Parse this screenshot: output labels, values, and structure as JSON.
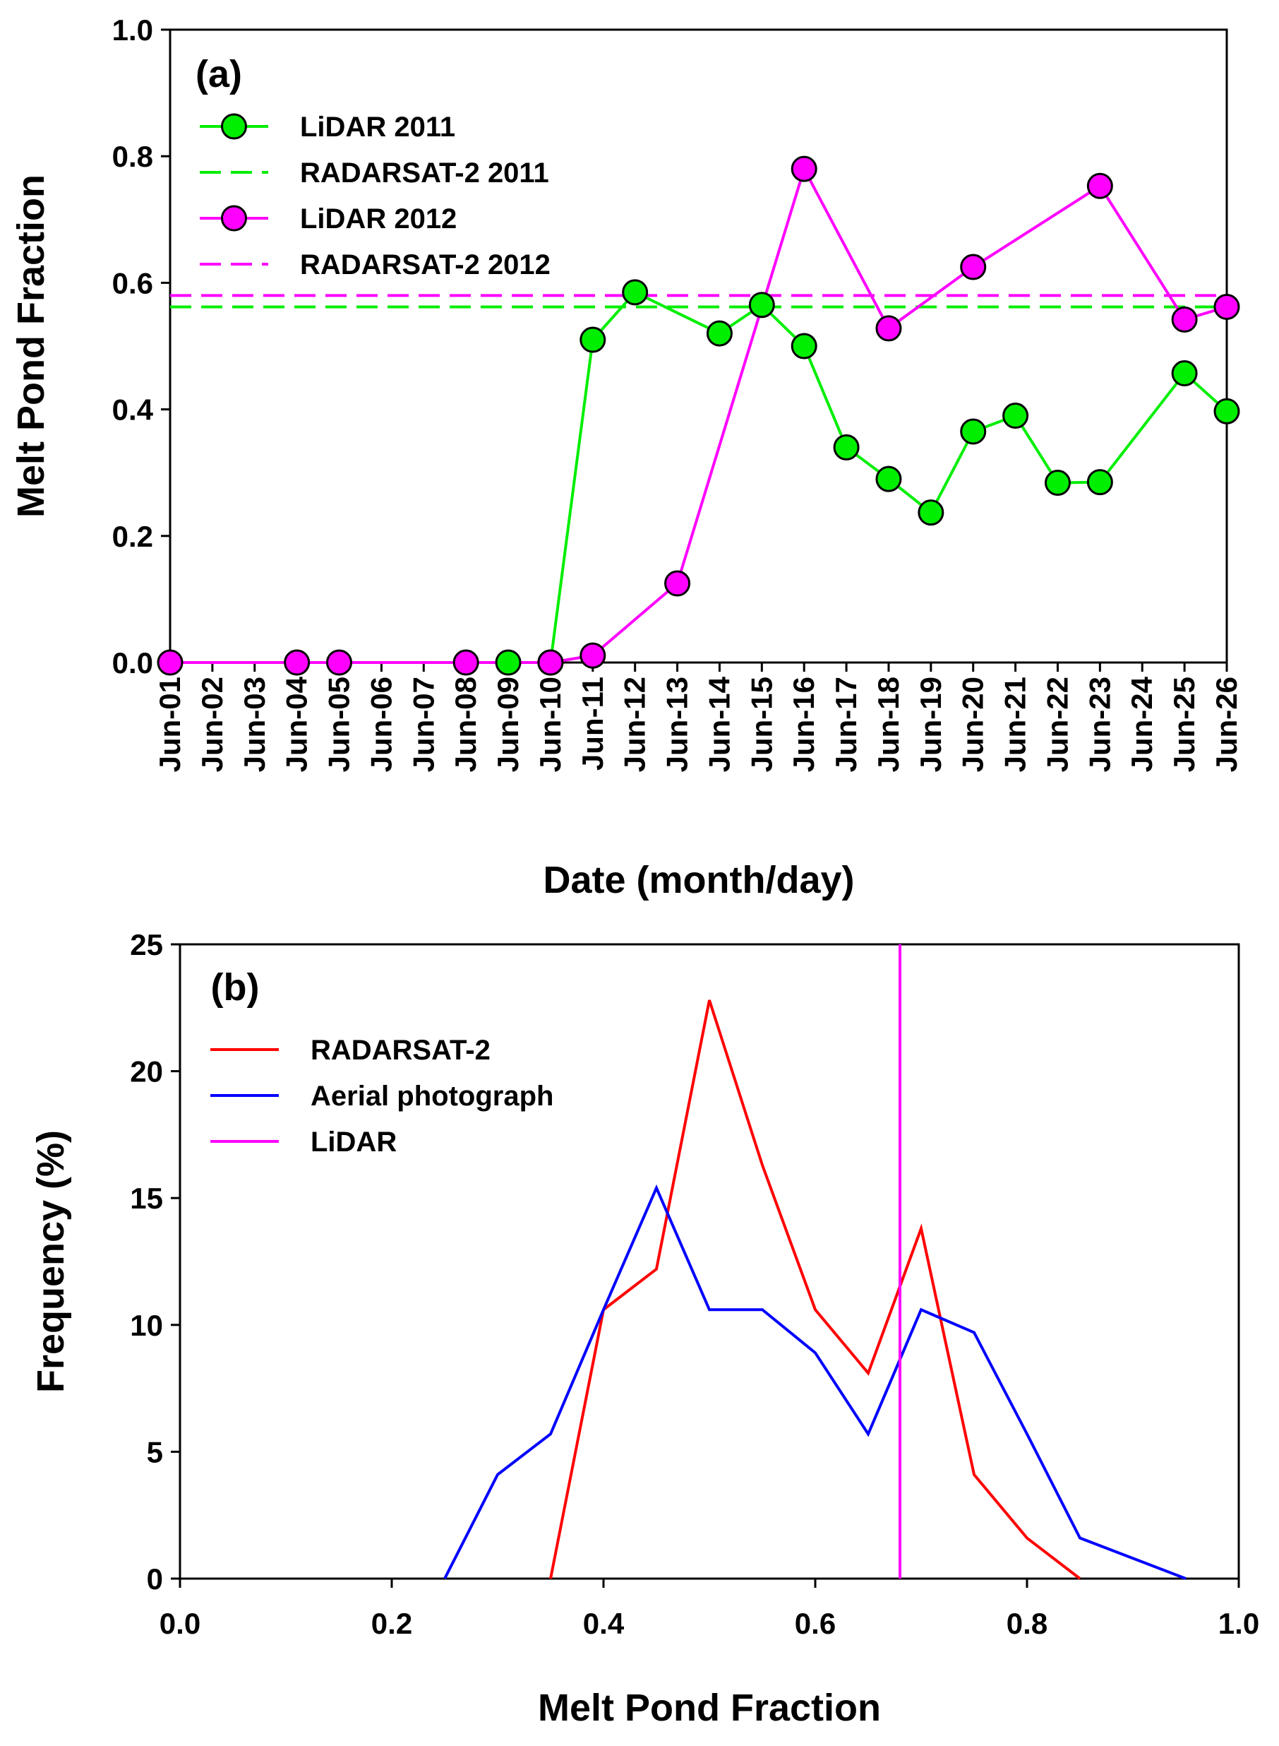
{
  "chart_data": [
    {
      "type": "line",
      "panel_label": "(a)",
      "xlabel": "Date (month/day)",
      "ylabel": "Melt Pond Fraction",
      "ylim": [
        0.0,
        1.0
      ],
      "ytick_labels": [
        "0.0",
        "0.2",
        "0.4",
        "0.6",
        "0.8",
        "1.0"
      ],
      "categories": [
        "Jun-01",
        "Jun-02",
        "Jun-03",
        "Jun-04",
        "Jun-05",
        "Jun-06",
        "Jun-07",
        "Jun-08",
        "Jun-09",
        "Jun-10",
        "Jun-11",
        "Jun-12",
        "Jun-13",
        "Jun-14",
        "Jun-15",
        "Jun-16",
        "Jun-17",
        "Jun-18",
        "Jun-19",
        "Jun-20",
        "Jun-21",
        "Jun-22",
        "Jun-23",
        "Jun-24",
        "Jun-25",
        "Jun-26"
      ],
      "series": [
        {
          "name": "LiDAR 2011",
          "color": "#00ee00",
          "style": "line-marker",
          "points": [
            {
              "x": "Jun-09",
              "y": 0.0
            },
            {
              "x": "Jun-10",
              "y": 0.0
            },
            {
              "x": "Jun-11",
              "y": 0.51
            },
            {
              "x": "Jun-12",
              "y": 0.585
            },
            {
              "x": "Jun-14",
              "y": 0.52
            },
            {
              "x": "Jun-15",
              "y": 0.565
            },
            {
              "x": "Jun-16",
              "y": 0.5
            },
            {
              "x": "Jun-17",
              "y": 0.34
            },
            {
              "x": "Jun-18",
              "y": 0.29
            },
            {
              "x": "Jun-19",
              "y": 0.237
            },
            {
              "x": "Jun-20",
              "y": 0.365
            },
            {
              "x": "Jun-21",
              "y": 0.39
            },
            {
              "x": "Jun-22",
              "y": 0.284
            },
            {
              "x": "Jun-23",
              "y": 0.285
            },
            {
              "x": "Jun-25",
              "y": 0.457
            },
            {
              "x": "Jun-26",
              "y": 0.397
            }
          ]
        },
        {
          "name": "RADARSAT-2 2011",
          "color": "#00ee00",
          "style": "dashed",
          "value": 0.562
        },
        {
          "name": "LiDAR 2012",
          "color": "#ff00ff",
          "style": "line-marker",
          "points": [
            {
              "x": "Jun-01",
              "y": 0.0
            },
            {
              "x": "Jun-04",
              "y": 0.0
            },
            {
              "x": "Jun-05",
              "y": 0.0
            },
            {
              "x": "Jun-08",
              "y": 0.0
            },
            {
              "x": "Jun-10",
              "y": 0.0
            },
            {
              "x": "Jun-11",
              "y": 0.011
            },
            {
              "x": "Jun-13",
              "y": 0.125
            },
            {
              "x": "Jun-16",
              "y": 0.78
            },
            {
              "x": "Jun-18",
              "y": 0.528
            },
            {
              "x": "Jun-20",
              "y": 0.625
            },
            {
              "x": "Jun-23",
              "y": 0.753
            },
            {
              "x": "Jun-25",
              "y": 0.542
            },
            {
              "x": "Jun-26",
              "y": 0.562
            }
          ]
        },
        {
          "name": "RADARSAT-2 2012",
          "color": "#ff00ff",
          "style": "dashed",
          "value": 0.58
        }
      ]
    },
    {
      "type": "line",
      "panel_label": "(b)",
      "xlabel": "Melt Pond Fraction",
      "ylabel": "Frequency (%)",
      "xlim": [
        0.0,
        1.0
      ],
      "ylim": [
        0,
        25
      ],
      "xtick_labels": [
        "0.0",
        "0.2",
        "0.4",
        "0.6",
        "0.8",
        "1.0"
      ],
      "ytick_labels": [
        "0",
        "5",
        "10",
        "15",
        "20",
        "25"
      ],
      "series": [
        {
          "name": "RADARSAT-2",
          "color": "#ff0000",
          "x": [
            0.35,
            0.4,
            0.45,
            0.5,
            0.55,
            0.6,
            0.65,
            0.7,
            0.75,
            0.8,
            0.85
          ],
          "y": [
            0,
            10.6,
            12.2,
            22.8,
            16.3,
            10.6,
            8.1,
            13.8,
            4.1,
            1.6,
            0
          ]
        },
        {
          "name": "Aerial photograph",
          "color": "#0000ff",
          "x": [
            0.25,
            0.3,
            0.35,
            0.4,
            0.45,
            0.5,
            0.55,
            0.6,
            0.65,
            0.7,
            0.75,
            0.8,
            0.85,
            0.9,
            0.95
          ],
          "y": [
            0,
            4.1,
            5.7,
            10.6,
            15.4,
            10.6,
            10.6,
            8.9,
            5.7,
            10.6,
            9.7,
            5.7,
            1.6,
            0.8,
            0
          ]
        },
        {
          "name": "LiDAR",
          "color": "#ff00ff",
          "style": "vertical",
          "x_value": 0.68
        }
      ]
    }
  ]
}
